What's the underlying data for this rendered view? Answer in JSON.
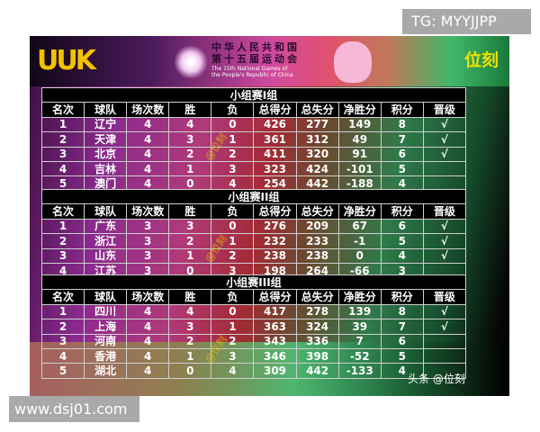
{
  "overlay": {
    "tg_label": "TG: MYYJJPP",
    "site_label": "www.dsj01.com"
  },
  "poster": {
    "logo_left": "UUK",
    "games_title_zh_1": "中华人民共和国",
    "games_title_zh_2": "第十五届运动会",
    "games_title_en_1": "The 15th National Games of",
    "games_title_en_2": "the People's Republic of China",
    "brand": "位刻",
    "watermark": "@位刻",
    "credit": "头条 @位刻"
  },
  "columns": [
    "名次",
    "球队",
    "场次数",
    "胜",
    "负",
    "总得分",
    "总失分",
    "净胜分",
    "积分",
    "晋级"
  ],
  "groups": [
    {
      "title": "小组赛I组",
      "rows": [
        [
          "1",
          "辽宁",
          "4",
          "4",
          "0",
          "426",
          "277",
          "149",
          "8",
          "√"
        ],
        [
          "2",
          "天津",
          "4",
          "3",
          "1",
          "361",
          "312",
          "49",
          "7",
          "√"
        ],
        [
          "3",
          "北京",
          "4",
          "2",
          "2",
          "411",
          "320",
          "91",
          "6",
          "√"
        ],
        [
          "4",
          "吉林",
          "4",
          "1",
          "3",
          "323",
          "424",
          "-101",
          "5",
          ""
        ],
        [
          "5",
          "澳门",
          "4",
          "0",
          "4",
          "254",
          "442",
          "-188",
          "4",
          ""
        ]
      ]
    },
    {
      "title": "小组赛II组",
      "rows": [
        [
          "1",
          "广东",
          "3",
          "3",
          "0",
          "276",
          "209",
          "67",
          "6",
          "√"
        ],
        [
          "2",
          "浙江",
          "3",
          "2",
          "1",
          "232",
          "233",
          "-1",
          "5",
          "√"
        ],
        [
          "3",
          "山东",
          "3",
          "1",
          "2",
          "238",
          "238",
          "0",
          "4",
          "√"
        ],
        [
          "4",
          "江苏",
          "3",
          "0",
          "3",
          "198",
          "264",
          "-66",
          "3",
          ""
        ]
      ]
    },
    {
      "title": "小组赛III组",
      "rows": [
        [
          "1",
          "四川",
          "4",
          "4",
          "0",
          "417",
          "278",
          "139",
          "8",
          "√"
        ],
        [
          "2",
          "上海",
          "4",
          "3",
          "1",
          "363",
          "324",
          "39",
          "7",
          "√"
        ],
        [
          "3",
          "河南",
          "4",
          "2",
          "2",
          "343",
          "336",
          "7",
          "6",
          ""
        ],
        [
          "4",
          "香港",
          "4",
          "1",
          "3",
          "346",
          "398",
          "-52",
          "5",
          ""
        ],
        [
          "5",
          "湖北",
          "4",
          "0",
          "4",
          "309",
          "442",
          "-133",
          "4",
          ""
        ]
      ]
    }
  ]
}
